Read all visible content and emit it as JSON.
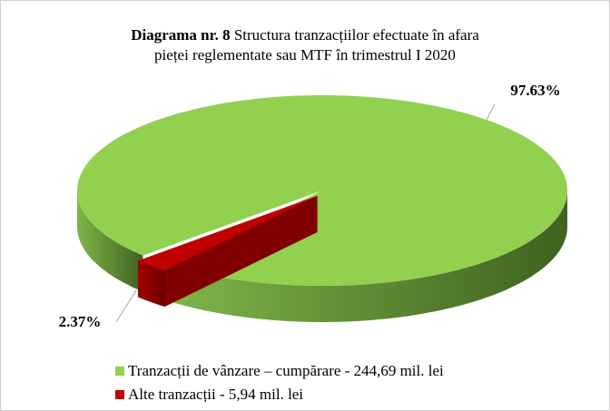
{
  "chart_data": {
    "type": "pie",
    "title_number": "Diagrama nr. 8",
    "title": [
      "Structura tranzacțiilor efectuate în afara",
      "pieței reglementate sau MTF în trimestrul I 2020"
    ],
    "categories": [
      "Tranzacții de vânzare – cumpărare - 244,69 mil. lei",
      "Alte tranzacții - 5,94 mil. lei"
    ],
    "values": [
      97.63,
      2.37
    ],
    "value_labels": [
      "97.63%",
      "2.37%"
    ],
    "colors": [
      "#92d050",
      "#c00000"
    ],
    "legend": "bottom"
  }
}
